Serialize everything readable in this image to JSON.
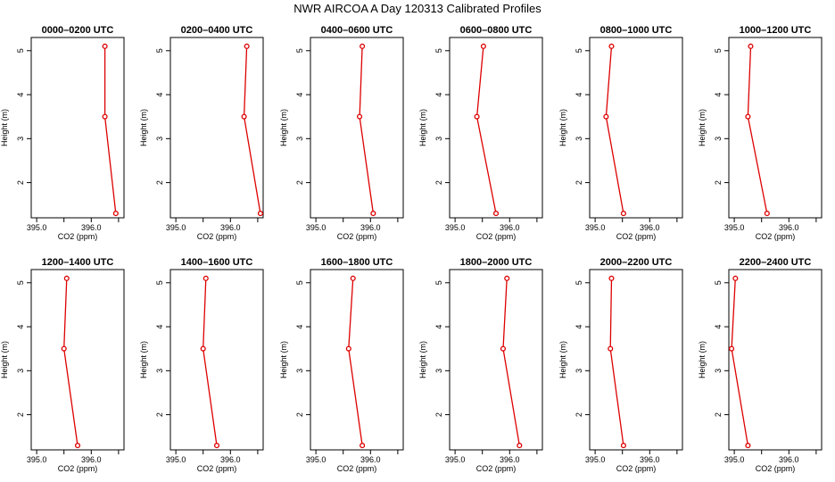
{
  "title": "NWR AIRCOA A  Day 120313  Calibrated Profiles",
  "chart_data": {
    "type": "line",
    "xlabel": "CO2 (ppm)",
    "ylabel": "Height (m)",
    "xlim": [
      394.9,
      396.6
    ],
    "ylim": [
      1.2,
      5.3
    ],
    "xticks": [
      395.0,
      395.5,
      396.0,
      396.5
    ],
    "xtick_labels": [
      "395.0",
      "",
      "396.0",
      ""
    ],
    "yticks": [
      2,
      3,
      4,
      5
    ],
    "ytick_labels": [
      "2",
      "3",
      "4",
      "5"
    ],
    "line_color": "#dd0000",
    "heights": [
      1.3,
      3.5,
      5.1
    ],
    "panels": [
      {
        "title": "0000–0200 UTC",
        "x": [
          396.45,
          396.25,
          396.25
        ]
      },
      {
        "title": "0200–0400 UTC",
        "x": [
          396.55,
          396.25,
          396.3
        ]
      },
      {
        "title": "0400–0600 UTC",
        "x": [
          396.05,
          395.8,
          395.85
        ]
      },
      {
        "title": "0600–0800 UTC",
        "x": [
          395.75,
          395.4,
          395.52
        ]
      },
      {
        "title": "0800–1000 UTC",
        "x": [
          395.52,
          395.2,
          395.3
        ]
      },
      {
        "title": "1000–1200 UTC",
        "x": [
          395.6,
          395.25,
          395.3
        ]
      },
      {
        "title": "1200–1400 UTC",
        "x": [
          395.75,
          395.5,
          395.55
        ]
      },
      {
        "title": "1400–1600 UTC",
        "x": [
          395.75,
          395.5,
          395.55
        ]
      },
      {
        "title": "1600–1800 UTC",
        "x": [
          395.85,
          395.6,
          395.68
        ]
      },
      {
        "title": "1800–2000 UTC",
        "x": [
          396.18,
          395.88,
          395.95
        ]
      },
      {
        "title": "2000–2200 UTC",
        "x": [
          395.52,
          395.28,
          395.3
        ]
      },
      {
        "title": "2200–2400 UTC",
        "x": [
          395.25,
          394.95,
          395.02
        ]
      }
    ]
  }
}
